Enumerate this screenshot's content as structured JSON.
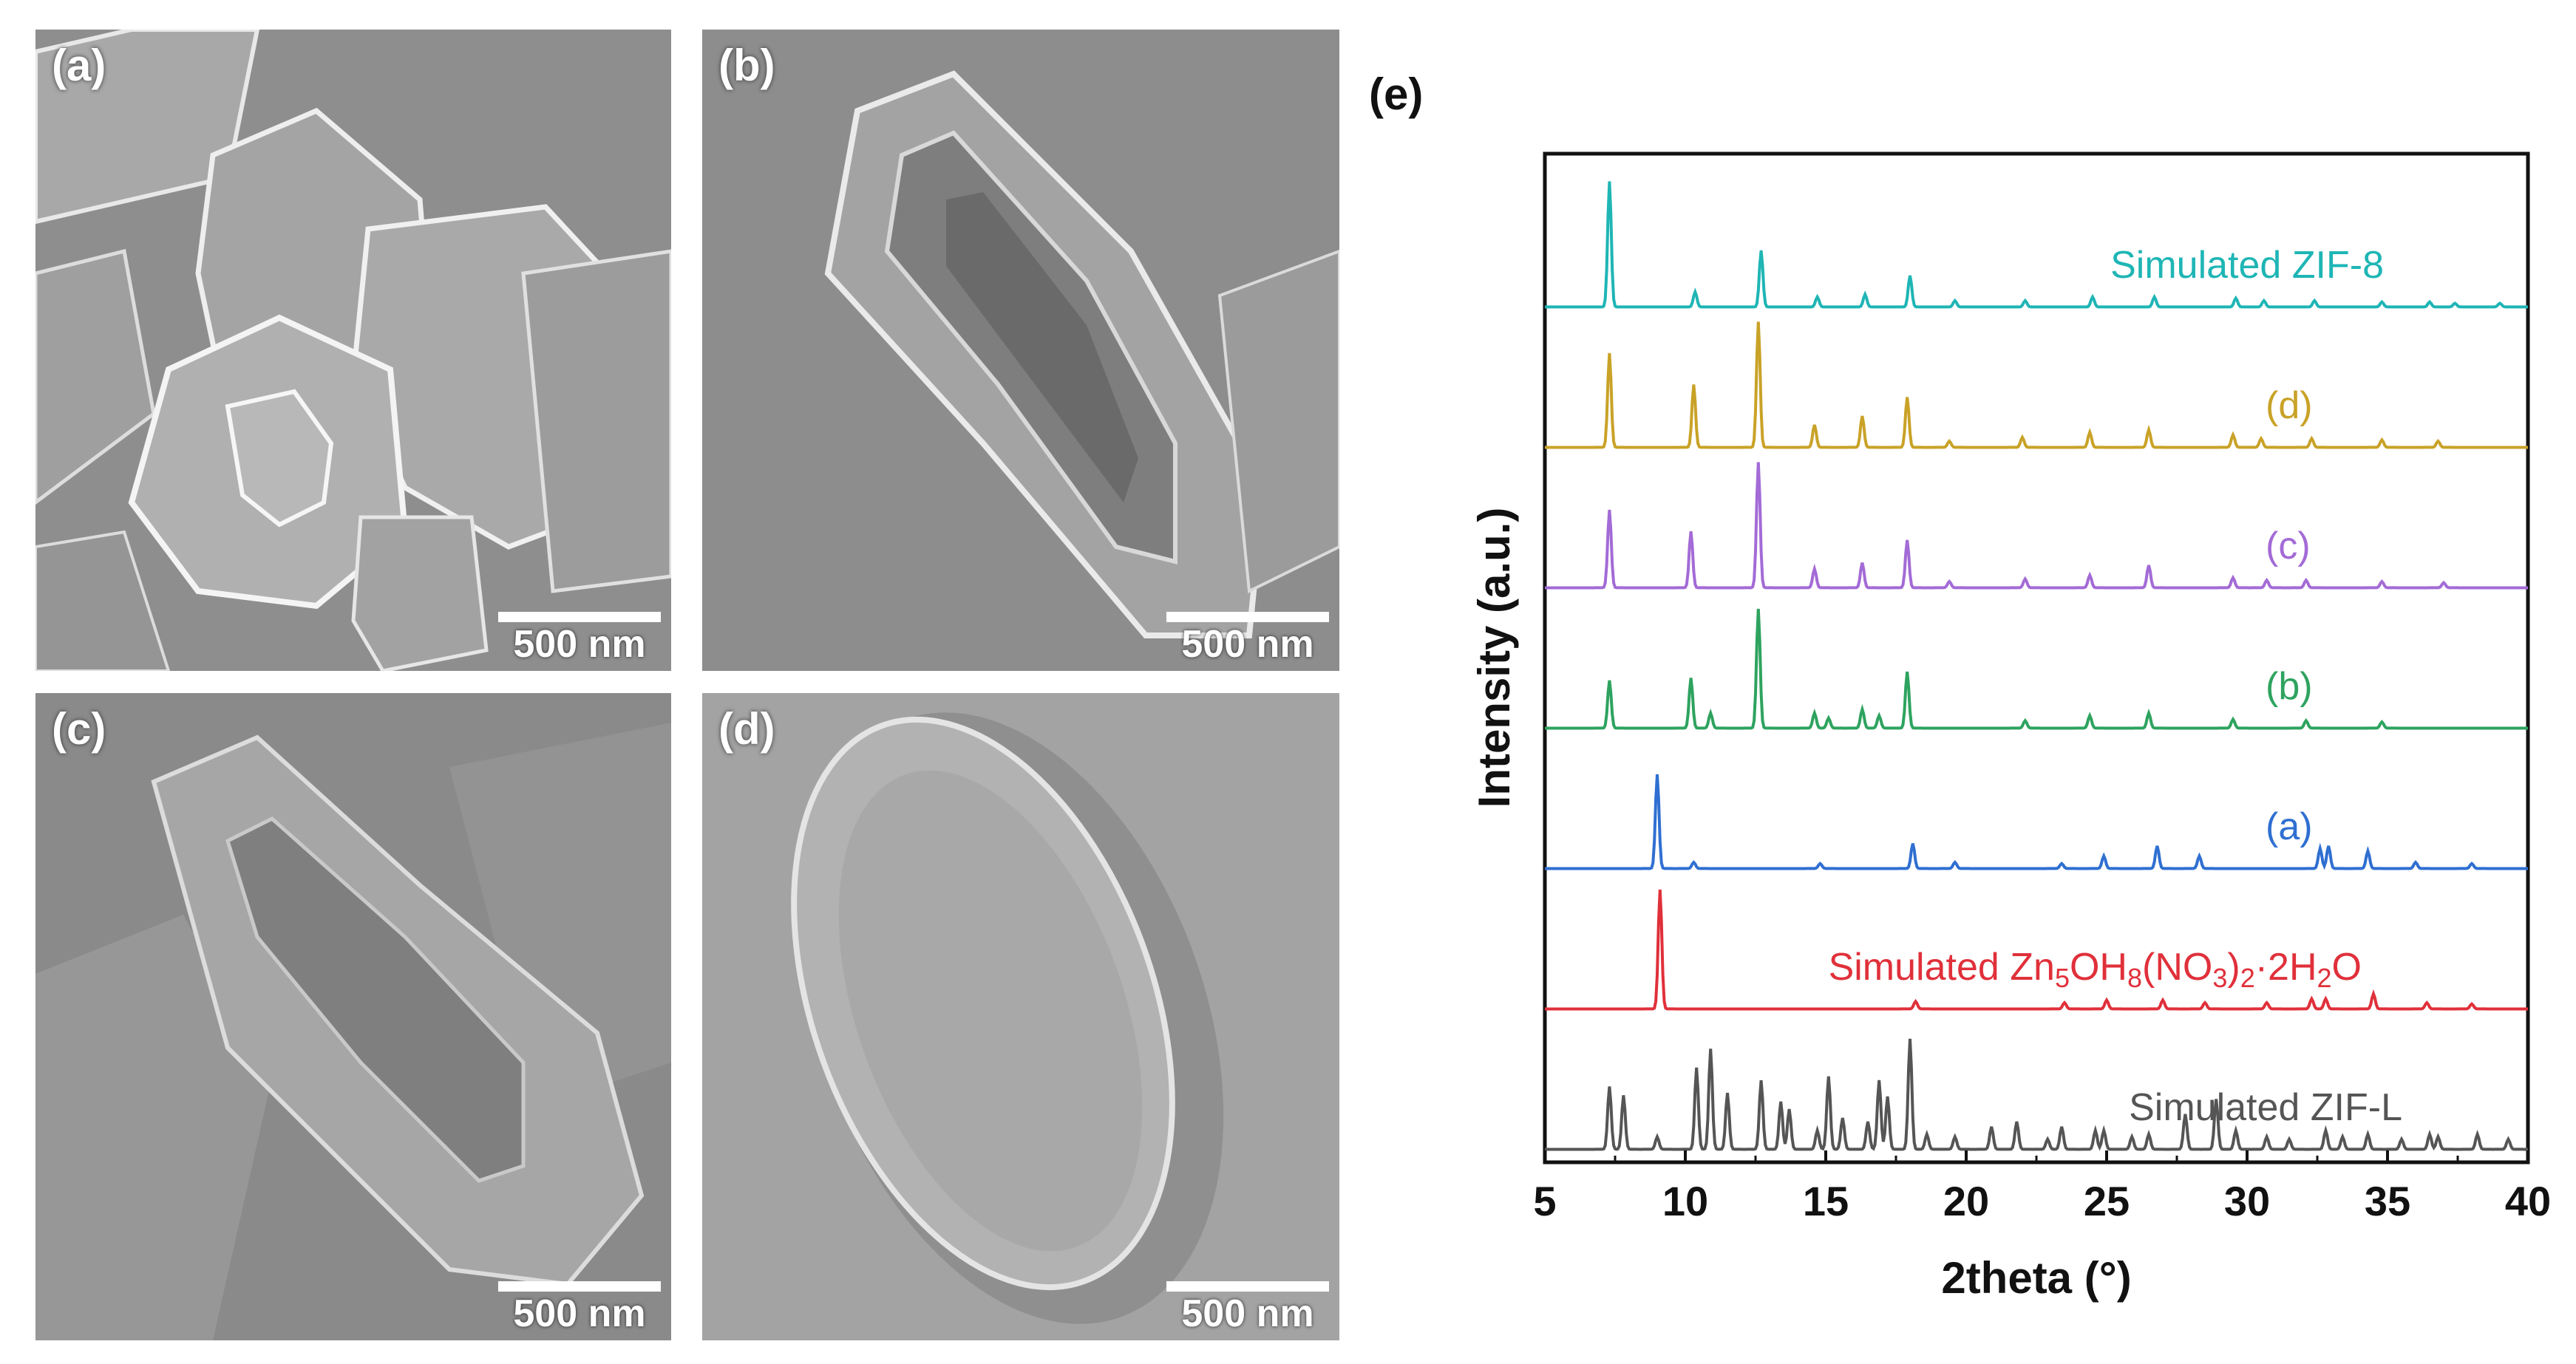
{
  "panels": {
    "a": {
      "label": "(a)",
      "scale": "500 nm"
    },
    "b": {
      "label": "(b)",
      "scale": "500 nm"
    },
    "c": {
      "label": "(c)",
      "scale": "500 nm"
    },
    "d": {
      "label": "(d)",
      "scale": "500 nm"
    }
  },
  "chart_data": {
    "type": "line",
    "panel_label": "(e)",
    "xlabel": "2theta (°)",
    "ylabel": "Intensity (a.u.)",
    "xlim": [
      5,
      40
    ],
    "xticks": [
      "5",
      "10",
      "15",
      "20",
      "25",
      "30",
      "35",
      "40"
    ],
    "series": [
      {
        "name": "Simulated ZIF-8",
        "color": "#1fb5b5",
        "offset": 6,
        "peaks": [
          [
            7.3,
            1.0
          ],
          [
            10.35,
            0.12
          ],
          [
            12.7,
            0.45
          ],
          [
            14.7,
            0.08
          ],
          [
            16.4,
            0.1
          ],
          [
            18.0,
            0.25
          ],
          [
            19.6,
            0.05
          ],
          [
            22.1,
            0.05
          ],
          [
            24.5,
            0.08
          ],
          [
            26.7,
            0.08
          ],
          [
            29.6,
            0.07
          ],
          [
            30.6,
            0.05
          ],
          [
            32.4,
            0.05
          ],
          [
            34.8,
            0.04
          ],
          [
            36.5,
            0.04
          ],
          [
            37.4,
            0.03
          ],
          [
            39.0,
            0.03
          ]
        ]
      },
      {
        "name": "(d)",
        "color": "#c9a227",
        "offset": 5,
        "peaks": [
          [
            7.3,
            0.75
          ],
          [
            10.3,
            0.5
          ],
          [
            12.6,
            1.0
          ],
          [
            14.6,
            0.18
          ],
          [
            16.3,
            0.25
          ],
          [
            17.9,
            0.4
          ],
          [
            19.4,
            0.05
          ],
          [
            22.0,
            0.08
          ],
          [
            24.4,
            0.12
          ],
          [
            26.5,
            0.14
          ],
          [
            29.5,
            0.1
          ],
          [
            30.5,
            0.07
          ],
          [
            32.3,
            0.07
          ],
          [
            34.8,
            0.06
          ],
          [
            36.8,
            0.05
          ]
        ]
      },
      {
        "name": "(c)",
        "color": "#a36bd6",
        "offset": 4,
        "peaks": [
          [
            7.3,
            0.62
          ],
          [
            10.2,
            0.45
          ],
          [
            12.6,
            1.0
          ],
          [
            14.6,
            0.15
          ],
          [
            16.3,
            0.2
          ],
          [
            17.9,
            0.38
          ],
          [
            19.4,
            0.05
          ],
          [
            22.1,
            0.07
          ],
          [
            24.4,
            0.1
          ],
          [
            26.5,
            0.18
          ],
          [
            29.5,
            0.08
          ],
          [
            30.7,
            0.06
          ],
          [
            32.1,
            0.06
          ],
          [
            34.8,
            0.05
          ],
          [
            37.0,
            0.04
          ]
        ]
      },
      {
        "name": "(b)",
        "color": "#2ea35f",
        "offset": 3,
        "peaks": [
          [
            7.3,
            0.38
          ],
          [
            10.2,
            0.4
          ],
          [
            10.9,
            0.12
          ],
          [
            12.6,
            0.95
          ],
          [
            14.6,
            0.12
          ],
          [
            15.1,
            0.08
          ],
          [
            16.3,
            0.15
          ],
          [
            16.9,
            0.1
          ],
          [
            17.9,
            0.45
          ],
          [
            22.1,
            0.06
          ],
          [
            24.4,
            0.1
          ],
          [
            26.5,
            0.12
          ],
          [
            29.5,
            0.07
          ],
          [
            32.1,
            0.06
          ],
          [
            34.8,
            0.05
          ]
        ]
      },
      {
        "name": "(a)",
        "color": "#2f6fd1",
        "offset": 2,
        "peaks": [
          [
            9.0,
            0.75
          ],
          [
            10.3,
            0.05
          ],
          [
            14.8,
            0.04
          ],
          [
            18.1,
            0.2
          ],
          [
            19.6,
            0.05
          ],
          [
            23.4,
            0.04
          ],
          [
            24.9,
            0.1
          ],
          [
            26.8,
            0.18
          ],
          [
            28.3,
            0.1
          ],
          [
            32.6,
            0.16
          ],
          [
            32.9,
            0.18
          ],
          [
            34.3,
            0.14
          ],
          [
            36.0,
            0.05
          ],
          [
            38.0,
            0.04
          ]
        ]
      },
      {
        "name": "Simulated Zn5OH8(NO3)2·2H2O",
        "color": "#e0303a",
        "offset": 1,
        "peaks": [
          [
            9.1,
            0.95
          ],
          [
            18.2,
            0.06
          ],
          [
            23.5,
            0.05
          ],
          [
            25.0,
            0.07
          ],
          [
            27.0,
            0.07
          ],
          [
            28.5,
            0.05
          ],
          [
            30.7,
            0.05
          ],
          [
            32.3,
            0.08
          ],
          [
            32.8,
            0.08
          ],
          [
            34.5,
            0.12
          ],
          [
            36.4,
            0.05
          ],
          [
            38.0,
            0.04
          ]
        ]
      },
      {
        "name": "Simulated ZIF-L",
        "color": "#555555",
        "offset": 0,
        "peaks": [
          [
            7.3,
            0.5
          ],
          [
            7.8,
            0.43
          ],
          [
            9.0,
            0.1
          ],
          [
            10.4,
            0.65
          ],
          [
            10.9,
            0.8
          ],
          [
            11.5,
            0.45
          ],
          [
            12.7,
            0.55
          ],
          [
            13.4,
            0.38
          ],
          [
            13.7,
            0.32
          ],
          [
            14.7,
            0.15
          ],
          [
            15.1,
            0.58
          ],
          [
            15.6,
            0.25
          ],
          [
            16.5,
            0.22
          ],
          [
            16.9,
            0.55
          ],
          [
            17.2,
            0.42
          ],
          [
            18.0,
            0.88
          ],
          [
            18.6,
            0.12
          ],
          [
            19.6,
            0.1
          ],
          [
            20.9,
            0.18
          ],
          [
            21.8,
            0.22
          ],
          [
            22.9,
            0.08
          ],
          [
            23.4,
            0.18
          ],
          [
            24.6,
            0.15
          ],
          [
            24.9,
            0.15
          ],
          [
            25.9,
            0.1
          ],
          [
            26.5,
            0.12
          ],
          [
            27.8,
            0.28
          ],
          [
            28.9,
            0.4
          ],
          [
            29.6,
            0.15
          ],
          [
            30.7,
            0.1
          ],
          [
            31.5,
            0.08
          ],
          [
            32.8,
            0.15
          ],
          [
            33.4,
            0.1
          ],
          [
            34.3,
            0.12
          ],
          [
            35.5,
            0.08
          ],
          [
            36.5,
            0.12
          ],
          [
            36.8,
            0.1
          ],
          [
            38.2,
            0.12
          ],
          [
            39.3,
            0.08
          ]
        ]
      }
    ]
  }
}
